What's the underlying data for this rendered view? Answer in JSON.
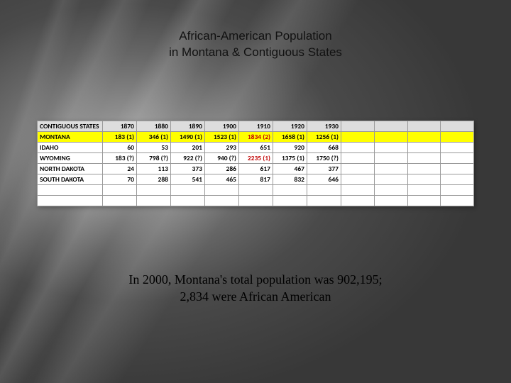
{
  "title_line1": "African-American Population",
  "title_line2": "in Montana & Contiguous States",
  "footnote_line1": "In 2000, Montana's total population was 902,195;",
  "footnote_line2": "2,834 were African American",
  "table": {
    "header_label": "CONTIGUOUS STATES",
    "years": [
      "1870",
      "1880",
      "1890",
      "1900",
      "1910",
      "1920",
      "1930"
    ],
    "extra_cols": 4,
    "rows": [
      {
        "label": "MONTANA",
        "highlight": true,
        "cells": [
          "183 (1)",
          "346 (1)",
          "1490 (1)",
          "1523 (1)",
          "1834 (2)",
          "1658 (1)",
          "1256 (1)"
        ],
        "red_idx": 4
      },
      {
        "label": "IDAHO",
        "cells": [
          "60",
          "53",
          "201",
          "293",
          "651",
          "920",
          "668"
        ]
      },
      {
        "label": "WYOMING",
        "cells": [
          "183 (?)",
          "798 (?)",
          "922 (?)",
          "940 (?)",
          "2235 (1)",
          "1375 (1)",
          "1750 (?)"
        ],
        "red_idx": 4
      },
      {
        "label": "NORTH DAKOTA",
        "cells": [
          "24",
          "113",
          "373",
          "286",
          "617",
          "467",
          "377"
        ]
      },
      {
        "label": "SOUTH DAKOTA",
        "cells": [
          "70",
          "288",
          "541",
          "465",
          "817",
          "832",
          "646"
        ]
      }
    ],
    "empty_rows": 2
  },
  "styling": {
    "highlight_color": "#ffff00",
    "red_text_color": "#c00000",
    "header_bg": "#dddddd",
    "border_color": "#999999",
    "title_font": "Verdana",
    "title_fontsize": 17,
    "footnote_font": "Georgia",
    "footnote_fontsize": 18,
    "table_font": "Calibri",
    "table_fontsize": 9.5
  }
}
